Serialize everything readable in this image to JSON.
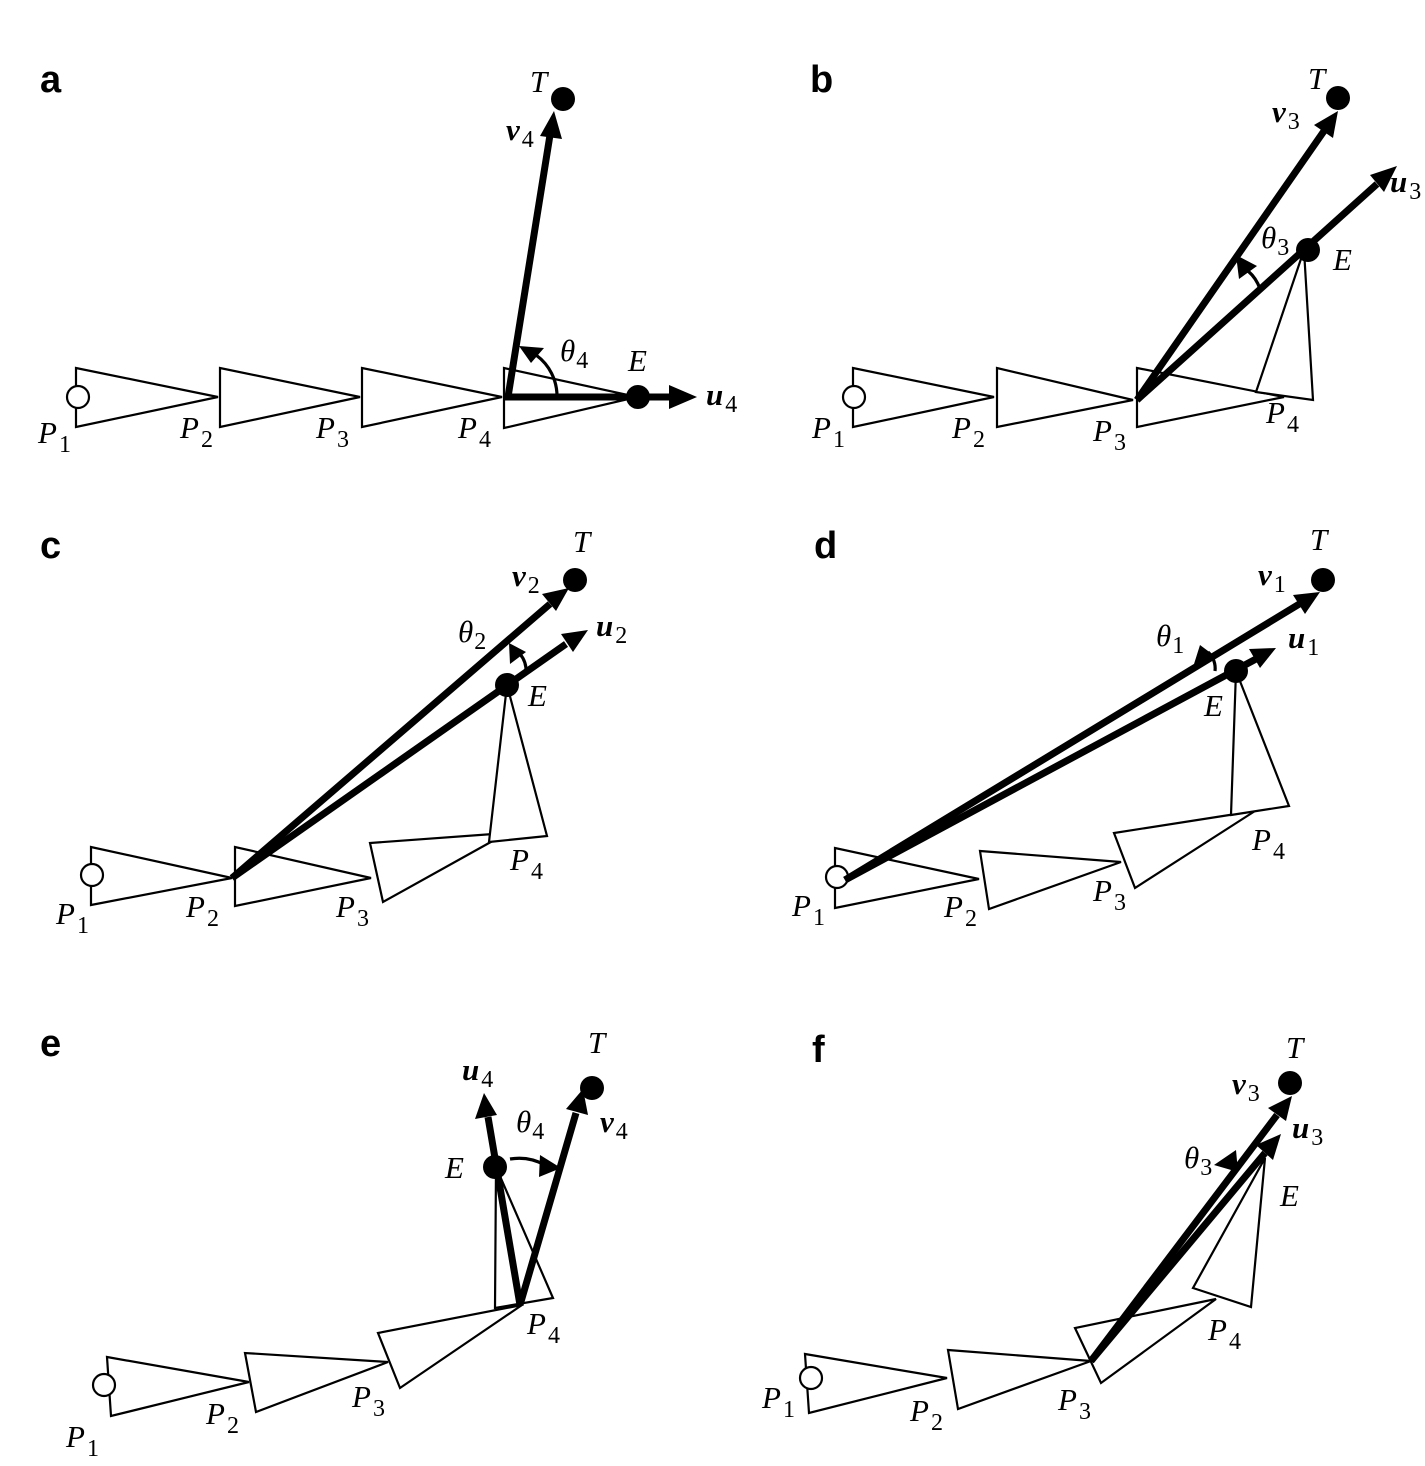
{
  "panels": {
    "a": {
      "label": "a",
      "joints": [
        {
          "name": "P",
          "sub": "1"
        },
        {
          "name": "P",
          "sub": "2"
        },
        {
          "name": "P",
          "sub": "3"
        },
        {
          "name": "P",
          "sub": "4"
        }
      ],
      "target": "T",
      "end_effector": "E",
      "v": {
        "name": "v",
        "sub": "4"
      },
      "u": {
        "name": "u",
        "sub": "4"
      },
      "theta": {
        "name": "θ",
        "sub": "4"
      }
    },
    "b": {
      "label": "b",
      "joints": [
        {
          "name": "P",
          "sub": "1"
        },
        {
          "name": "P",
          "sub": "2"
        },
        {
          "name": "P",
          "sub": "3"
        },
        {
          "name": "P",
          "sub": "4"
        }
      ],
      "target": "T",
      "end_effector": "E",
      "v": {
        "name": "v",
        "sub": "3"
      },
      "u": {
        "name": "u",
        "sub": "3"
      },
      "theta": {
        "name": "θ",
        "sub": "3"
      }
    },
    "c": {
      "label": "c",
      "joints": [
        {
          "name": "P",
          "sub": "1"
        },
        {
          "name": "P",
          "sub": "2"
        },
        {
          "name": "P",
          "sub": "3"
        },
        {
          "name": "P",
          "sub": "4"
        }
      ],
      "target": "T",
      "end_effector": "E",
      "v": {
        "name": "v",
        "sub": "2"
      },
      "u": {
        "name": "u",
        "sub": "2"
      },
      "theta": {
        "name": "θ",
        "sub": "2"
      }
    },
    "d": {
      "label": "d",
      "joints": [
        {
          "name": "P",
          "sub": "1"
        },
        {
          "name": "P",
          "sub": "2"
        },
        {
          "name": "P",
          "sub": "3"
        },
        {
          "name": "P",
          "sub": "4"
        }
      ],
      "target": "T",
      "end_effector": "E",
      "v": {
        "name": "v",
        "sub": "1"
      },
      "u": {
        "name": "u",
        "sub": "1"
      },
      "theta": {
        "name": "θ",
        "sub": "1"
      }
    },
    "e": {
      "label": "e",
      "joints": [
        {
          "name": "P",
          "sub": "1"
        },
        {
          "name": "P",
          "sub": "2"
        },
        {
          "name": "P",
          "sub": "3"
        },
        {
          "name": "P",
          "sub": "4"
        }
      ],
      "target": "T",
      "end_effector": "E",
      "v": {
        "name": "v",
        "sub": "4"
      },
      "u": {
        "name": "u",
        "sub": "4"
      },
      "theta": {
        "name": "θ",
        "sub": "4"
      }
    },
    "f": {
      "label": "f",
      "joints": [
        {
          "name": "P",
          "sub": "1"
        },
        {
          "name": "P",
          "sub": "2"
        },
        {
          "name": "P",
          "sub": "3"
        },
        {
          "name": "P",
          "sub": "4"
        }
      ],
      "target": "T",
      "end_effector": "E",
      "v": {
        "name": "v",
        "sub": "3"
      },
      "u": {
        "name": "u",
        "sub": "3"
      },
      "theta": {
        "name": "θ",
        "sub": "3"
      }
    }
  }
}
